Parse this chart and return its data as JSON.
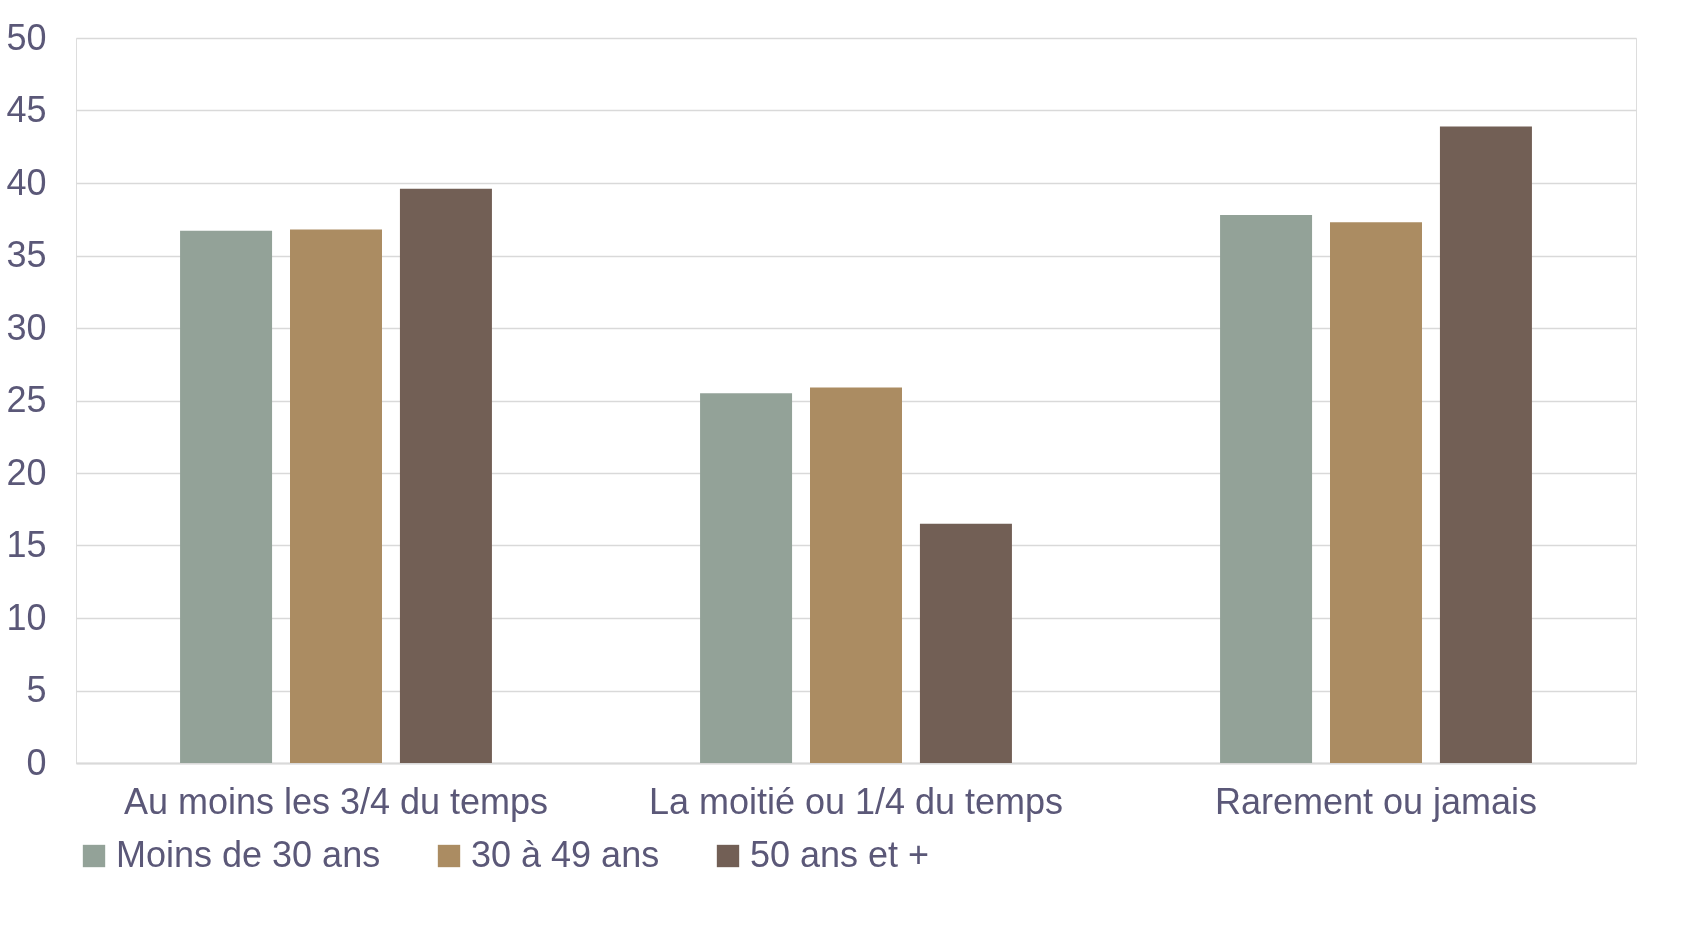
{
  "chart_data": {
    "type": "bar",
    "categories": [
      "Au moins les 3/4 du temps",
      "La moitié ou 1/4 du temps",
      "Rarement ou jamais"
    ],
    "series": [
      {
        "name": "Moins de 30 ans",
        "color": "#93a298",
        "values": [
          36.7,
          25.5,
          37.8
        ]
      },
      {
        "name": "30 à 49 ans",
        "color": "#ab8c62",
        "values": [
          36.8,
          25.9,
          37.3
        ]
      },
      {
        "name": "50 ans et +",
        "color": "#725f55",
        "values": [
          39.6,
          16.5,
          43.9
        ]
      }
    ],
    "ylim": [
      0,
      50
    ],
    "yticks": [
      0,
      5,
      10,
      15,
      20,
      25,
      30,
      35,
      40,
      45,
      50
    ],
    "grid": "y",
    "legend": "bottom"
  }
}
